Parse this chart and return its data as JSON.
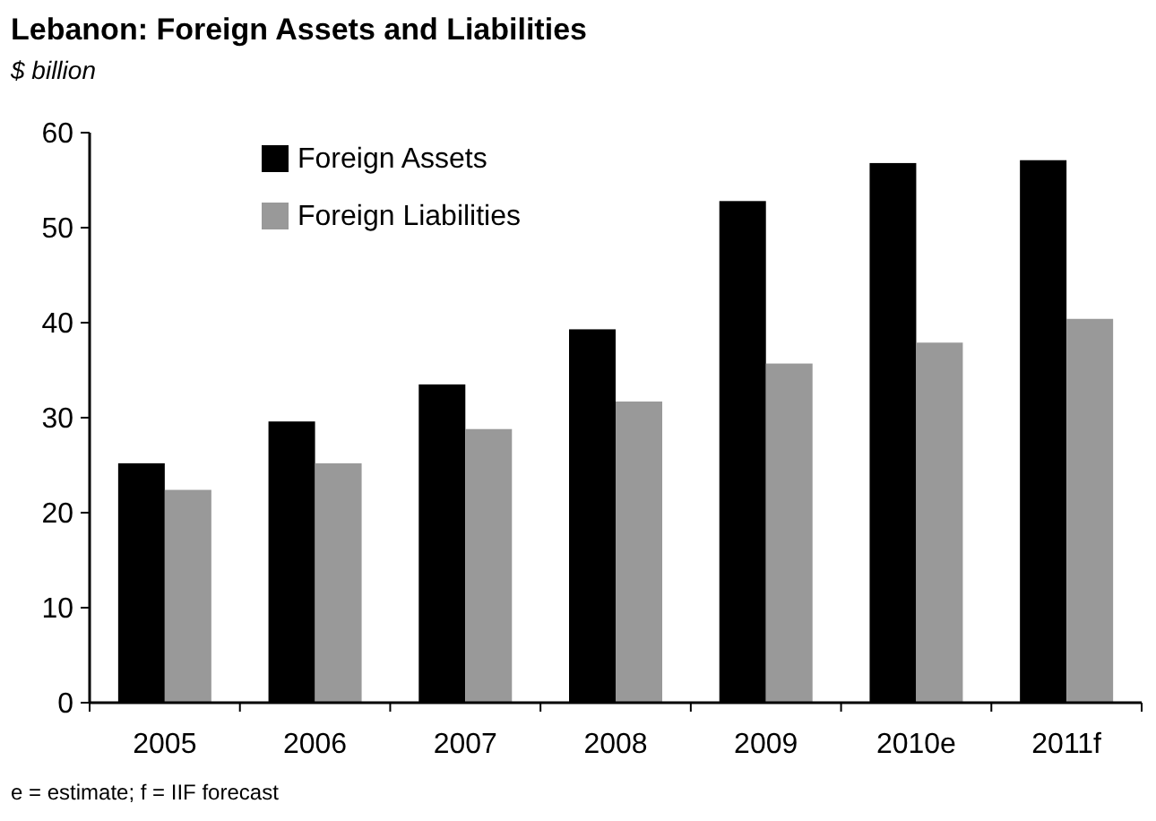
{
  "chart_data": {
    "type": "bar",
    "title": "Lebanon: Foreign Assets and Liabilities",
    "subtitle": "$ billion",
    "categories": [
      "2005",
      "2006",
      "2007",
      "2008",
      "2009",
      "2010e",
      "2011f"
    ],
    "series": [
      {
        "name": "Foreign Assets",
        "color": "#000000",
        "values": [
          25.2,
          29.6,
          33.5,
          39.3,
          52.8,
          56.8,
          57.1
        ]
      },
      {
        "name": "Foreign Liabilities",
        "color": "#999999",
        "values": [
          22.4,
          25.2,
          28.8,
          31.7,
          35.7,
          37.9,
          40.4
        ]
      }
    ],
    "ylim": [
      0,
      60
    ],
    "yticks": [
      0,
      10,
      20,
      30,
      40,
      50,
      60
    ],
    "grid": false,
    "legend": "top left",
    "annotations": [
      "e = estimate; f = IIF forecast"
    ]
  }
}
